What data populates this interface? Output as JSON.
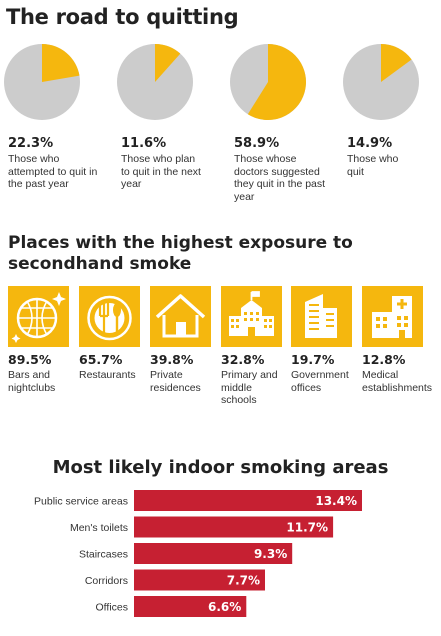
{
  "section1": {
    "title": "The road to quitting",
    "pies": [
      {
        "value": "22.3%",
        "fraction": 0.223,
        "caption": "Those who attempted to quit in the past year"
      },
      {
        "value": "11.6%",
        "fraction": 0.116,
        "caption": "Those who plan to quit in the next year"
      },
      {
        "value": "58.9%",
        "fraction": 0.589,
        "caption": "Those whose doctors suggested they quit in the past year"
      },
      {
        "value": "14.9%",
        "fraction": 0.149,
        "caption": "Those who quit"
      }
    ]
  },
  "section2": {
    "title": "Places with the highest exposure to secondhand smoke",
    "places": [
      {
        "value": "89.5%",
        "caption": "Bars and nightclubs",
        "icon": "disco-ball-icon"
      },
      {
        "value": "65.7%",
        "caption": "Restaurants",
        "icon": "plate-utensils-icon"
      },
      {
        "value": "39.8%",
        "caption": "Private residences",
        "icon": "house-icon"
      },
      {
        "value": "32.8%",
        "caption": "Primary and middle schools",
        "icon": "school-icon"
      },
      {
        "value": "19.7%",
        "caption": "Government offices",
        "icon": "office-building-icon"
      },
      {
        "value": "12.8%",
        "caption": "Medical establishments",
        "icon": "hospital-icon"
      }
    ]
  },
  "chart_data": {
    "type": "bar",
    "orientation": "horizontal",
    "title": "Most likely indoor smoking areas",
    "categories": [
      "Public service areas",
      "Men's toilets",
      "Staircases",
      "Corridors",
      "Offices"
    ],
    "values": [
      13.4,
      11.7,
      9.3,
      7.7,
      6.6
    ],
    "value_labels": [
      "13.4%",
      "11.7%",
      "9.3%",
      "7.7%",
      "6.6%"
    ],
    "color": "#c62032"
  },
  "colors": {
    "accent": "#f5b70e",
    "pie_rest": "#cccccc",
    "bar": "#c62032"
  }
}
